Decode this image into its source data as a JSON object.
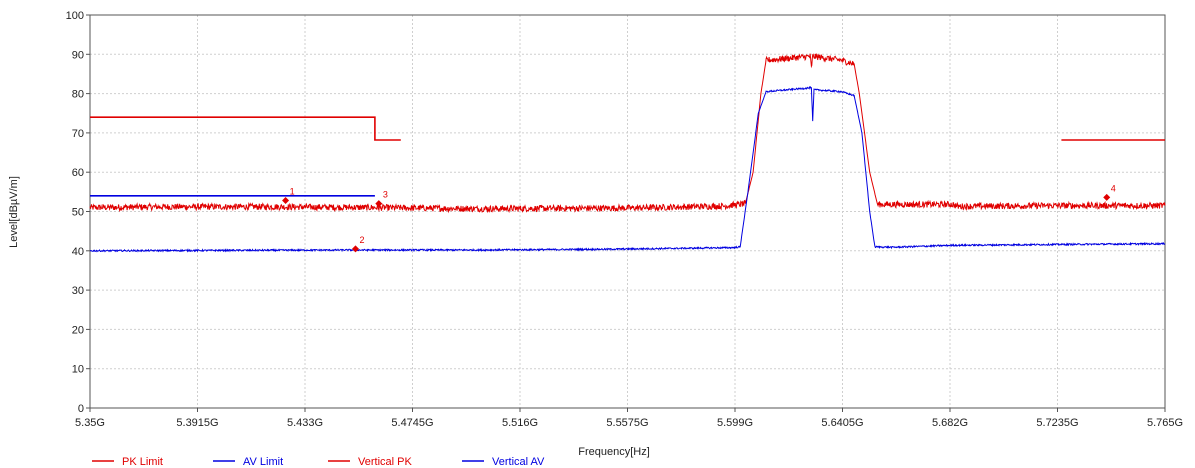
{
  "chart_data": {
    "type": "line",
    "xlabel": "Frequency[Hz]",
    "ylabel": "Level[dBµV/m]",
    "x_tick_labels": [
      "5.35G",
      "5.3915G",
      "5.433G",
      "5.4745G",
      "5.516G",
      "5.5575G",
      "5.599G",
      "5.6405G",
      "5.682G",
      "5.7235G",
      "5.765G"
    ],
    "x_ticks_ghz": [
      5.35,
      5.3915,
      5.433,
      5.4745,
      5.516,
      5.5575,
      5.599,
      5.6405,
      5.682,
      5.7235,
      5.765
    ],
    "y_tick_labels": [
      "0",
      "10",
      "20",
      "30",
      "40",
      "50",
      "60",
      "70",
      "80",
      "90",
      "100"
    ],
    "xlim_ghz": [
      5.35,
      5.765
    ],
    "ylim": [
      0,
      100
    ],
    "grid": true,
    "legend_position": "bottom-left",
    "series": [
      {
        "name": "PK Limit",
        "color": "#e00000",
        "segments": [
          [
            [
              5.35,
              74
            ],
            [
              5.46,
              74
            ],
            [
              5.46,
              68.2
            ],
            [
              5.47,
              68.2
            ]
          ],
          [
            [
              5.725,
              68.2
            ],
            [
              5.765,
              68.2
            ]
          ]
        ]
      },
      {
        "name": "AV Limit",
        "color": "#0000e0",
        "segments": [
          [
            [
              5.35,
              54
            ],
            [
              5.46,
              54
            ]
          ]
        ]
      },
      {
        "name": "Vertical PK",
        "color": "#e00000",
        "noise": 0.8,
        "points": [
          [
            5.35,
            51
          ],
          [
            5.38,
            51.2
          ],
          [
            5.42,
            51.2
          ],
          [
            5.46,
            51
          ],
          [
            5.5,
            50.7
          ],
          [
            5.56,
            50.9
          ],
          [
            5.595,
            51.4
          ],
          [
            5.603,
            52
          ],
          [
            5.606,
            60
          ],
          [
            5.609,
            80
          ],
          [
            5.611,
            88.5
          ],
          [
            5.62,
            89
          ],
          [
            5.628,
            89.5
          ],
          [
            5.6285,
            86.5
          ],
          [
            5.629,
            89.5
          ],
          [
            5.64,
            88.5
          ],
          [
            5.645,
            87.5
          ],
          [
            5.647,
            80
          ],
          [
            5.651,
            60
          ],
          [
            5.654,
            51.8
          ],
          [
            5.67,
            51.8
          ],
          [
            5.683,
            51.8
          ],
          [
            5.685,
            51.3
          ],
          [
            5.72,
            51.5
          ],
          [
            5.765,
            51.5
          ]
        ]
      },
      {
        "name": "Vertical AV",
        "color": "#0000e0",
        "noise": 0.2,
        "points": [
          [
            5.35,
            40
          ],
          [
            5.4,
            40.1
          ],
          [
            5.45,
            40.2
          ],
          [
            5.5,
            40.2
          ],
          [
            5.55,
            40.4
          ],
          [
            5.598,
            40.8
          ],
          [
            5.601,
            41
          ],
          [
            5.604,
            55
          ],
          [
            5.608,
            75
          ],
          [
            5.611,
            80.5
          ],
          [
            5.625,
            81.3
          ],
          [
            5.6285,
            81.5
          ],
          [
            5.629,
            73
          ],
          [
            5.6295,
            81
          ],
          [
            5.64,
            80.5
          ],
          [
            5.645,
            79.5
          ],
          [
            5.648,
            70
          ],
          [
            5.651,
            50
          ],
          [
            5.653,
            41
          ],
          [
            5.66,
            40.9
          ],
          [
            5.683,
            41.4
          ],
          [
            5.72,
            41.6
          ],
          [
            5.765,
            41.8
          ]
        ]
      }
    ],
    "markers": [
      {
        "label": "1",
        "x_ghz": 5.4255,
        "y": 52.8
      },
      {
        "label": "2",
        "x_ghz": 5.4525,
        "y": 40.5
      },
      {
        "label": "3",
        "x_ghz": 5.4615,
        "y": 52.0
      },
      {
        "label": "4",
        "x_ghz": 5.7425,
        "y": 53.6
      }
    ]
  }
}
